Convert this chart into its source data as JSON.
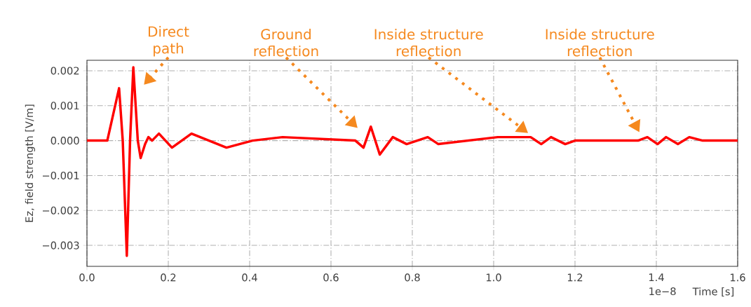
{
  "chart_data": {
    "type": "line",
    "xlabel": "Time [s]",
    "ylabel": "Ez, field strength [V/m]",
    "x": [
      0,
      0.05,
      0.079,
      0.088,
      0.098,
      0.106,
      0.114,
      0.125,
      0.132,
      0.143,
      0.151,
      0.16,
      0.177,
      0.209,
      0.257,
      0.343,
      0.407,
      0.481,
      0.66,
      0.68,
      0.698,
      0.72,
      0.752,
      0.786,
      0.838,
      0.864,
      1.01,
      1.091,
      1.117,
      1.141,
      1.176,
      1.2,
      1.338,
      1.355,
      1.378,
      1.403,
      1.424,
      1.453,
      1.481,
      1.514,
      1.6
    ],
    "series": [
      {
        "color": "#ff0000",
        "values": [
          0,
          0,
          0.0015,
          0,
          -0.0033,
          0,
          0.0021,
          0,
          -0.0005,
          -0.0001,
          0.0001,
          0,
          0.0002,
          -0.0002,
          0.0002,
          -0.0002,
          0,
          0.0001,
          0,
          -0.0002,
          0.0004,
          -0.0004,
          0.0001,
          -0.0001,
          0.0001,
          -0.0001,
          0.0001,
          0.0001,
          -0.0001,
          0.0001,
          -0.0001,
          0,
          0,
          0,
          0.0001,
          -0.0001,
          0.0001,
          -0.0001,
          0.0001,
          0,
          0
        ]
      }
    ],
    "xlim": [
      0,
      1.6
    ],
    "ylim": [
      -0.0036,
      0.0023
    ],
    "xticks": [
      {
        "value": 0,
        "label": "0.0"
      },
      0.2,
      0.4,
      0.6,
      0.8,
      {
        "value": 1,
        "label": "1.0"
      },
      1.2,
      1.4,
      1.6
    ],
    "yticks": [
      {
        "value": -0.003,
        "label": "−0.003"
      },
      {
        "value": -0.002,
        "label": "−0.002"
      },
      {
        "value": -0.001,
        "label": "−0.001"
      },
      {
        "value": 0,
        "label": "0.000"
      },
      0.001,
      0.002
    ],
    "grid": true,
    "marker": "none",
    "line_style": "solid",
    "annotations": [
      "Direct path",
      "Ground reflection",
      "Inside structure reflection",
      "Inside structure reflection",
      "1e−8"
    ]
  }
}
